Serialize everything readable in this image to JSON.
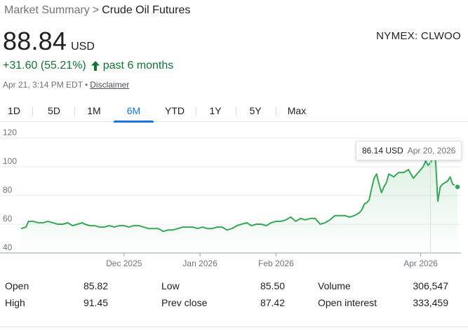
{
  "breadcrumb": {
    "parent": "Market Summary",
    "separator": ">",
    "current": "Crude Oil Futures"
  },
  "quote": {
    "price": "88.84",
    "currency": "USD",
    "exchange": "NYMEX: CLWOO",
    "change": "+31.60 (55.21%)",
    "period": "past 6 months",
    "timestamp": "Apr 21, 3:14 PM EDT",
    "separator": "•",
    "disclaimer": "Disclaimer",
    "positive_color": "#137333"
  },
  "tabs": [
    {
      "label": "1D",
      "active": false
    },
    {
      "label": "5D",
      "active": false
    },
    {
      "label": "1M",
      "active": false
    },
    {
      "label": "6M",
      "active": true
    },
    {
      "label": "YTD",
      "active": false
    },
    {
      "label": "1Y",
      "active": false
    },
    {
      "label": "5Y",
      "active": false
    },
    {
      "label": "Max",
      "active": false
    }
  ],
  "tooltip": {
    "value": "86.14 USD",
    "date": "Apr 20, 2026"
  },
  "chart_data": {
    "type": "area",
    "title": "",
    "xlabel": "",
    "ylabel": "",
    "ylim": [
      40,
      120
    ],
    "y_ticks": [
      "120",
      "100",
      "80",
      "60",
      "40"
    ],
    "x_ticks": [
      {
        "label": "Dec 2025",
        "day": 42
      },
      {
        "label": "Jan 2026",
        "day": 73
      },
      {
        "label": "Feb 2026",
        "day": 104
      },
      {
        "label": "Apr 2026",
        "day": 163
      }
    ],
    "x_range_days": [
      0,
      178
    ],
    "grid": true,
    "line_color": "#34a853",
    "series": [
      {
        "x_days": [
          0,
          2,
          3,
          5,
          7,
          9,
          11,
          13,
          15,
          17,
          19,
          21,
          23,
          25,
          26,
          28,
          30,
          32,
          34,
          36,
          38,
          40,
          42,
          44,
          46,
          48,
          50,
          52,
          54,
          56,
          58,
          60,
          62,
          64,
          66,
          68,
          70,
          72,
          74,
          76,
          78,
          80,
          82,
          84,
          86,
          88,
          90,
          92,
          94,
          96,
          98,
          100,
          102,
          104,
          106,
          108,
          110,
          112,
          114,
          116,
          118,
          120,
          122,
          124,
          126,
          128,
          130,
          132,
          134,
          136,
          138,
          139,
          140,
          141,
          142,
          143,
          144,
          145,
          146,
          147,
          148,
          149,
          150,
          152,
          154,
          156,
          158,
          160,
          162,
          164,
          165,
          166,
          167,
          168,
          169,
          170,
          171,
          172,
          173,
          174,
          175,
          176,
          178
        ],
        "values": [
          57,
          58,
          62,
          62,
          61,
          61,
          62,
          61,
          60,
          60,
          61,
          59,
          60,
          61,
          60,
          59,
          59,
          58,
          58,
          59,
          58,
          59,
          59,
          58,
          59,
          59,
          58,
          57,
          57,
          57,
          55,
          56,
          56,
          57,
          58,
          58,
          58,
          57,
          58,
          57,
          57,
          58,
          58,
          56,
          57,
          59,
          60,
          61,
          59,
          60,
          60,
          59,
          61,
          62,
          62,
          63,
          65,
          62,
          64,
          63,
          64,
          64,
          60,
          61,
          63,
          66,
          66,
          66,
          65,
          66,
          68,
          70,
          74,
          75,
          77,
          85,
          92,
          95,
          88,
          82,
          86,
          89,
          95,
          93,
          96,
          96,
          98,
          92,
          96,
          100,
          104,
          101,
          103,
          107,
          106,
          76,
          86,
          88,
          89,
          90,
          93,
          88,
          86
        ]
      }
    ]
  },
  "stats": {
    "rows": [
      [
        {
          "label": "Open",
          "value": "85.82"
        },
        {
          "label": "Low",
          "value": "85.50"
        },
        {
          "label": "Volume",
          "value": "306,547"
        }
      ],
      [
        {
          "label": "High",
          "value": "91.45"
        },
        {
          "label": "Prev close",
          "value": "87.42"
        },
        {
          "label": "Open interest",
          "value": "333,459"
        }
      ]
    ]
  }
}
